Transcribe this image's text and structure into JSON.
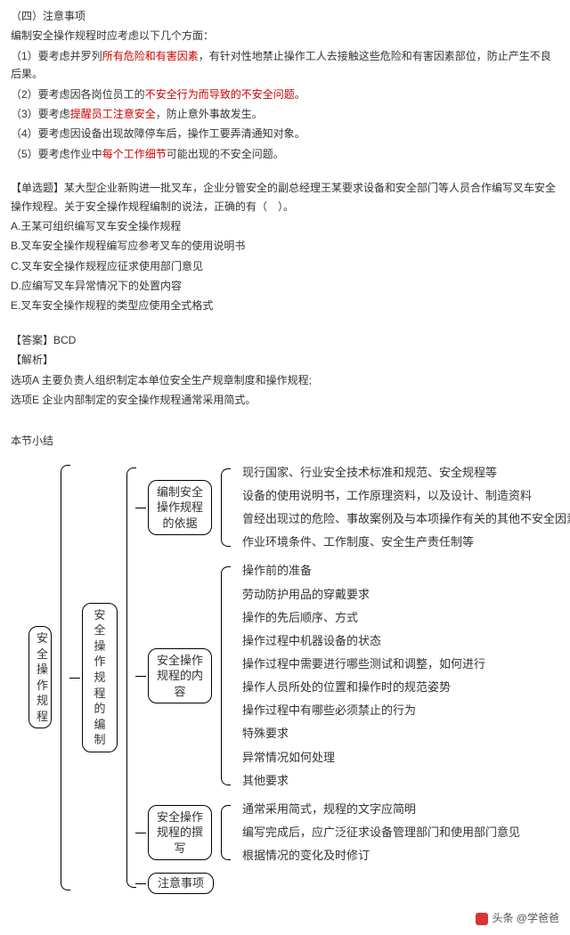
{
  "header": {
    "title": "（四）注意事项",
    "intro": "编制安全操作规程时应考虑以下几个方面：",
    "items": [
      {
        "pre": "（1）要考虑并罗列",
        "red": "所有危险和有害因素",
        "post": "，有针对性地禁止操作工人去接触这些危险和有害因素部位，防止产生不良后果。"
      },
      {
        "pre": "（2）要考虑因各岗位员工的",
        "red": "不安全行为而导致的不安全问题",
        "post": "。"
      },
      {
        "pre": "（3）要考虑",
        "red": "提醒员工注意安全",
        "post": "，防止意外事故发生。"
      },
      {
        "pre": "（4）要考虑因设备出现故障停车后，操作工要弄清通知对象。",
        "red": "",
        "post": ""
      },
      {
        "pre": "（5）要考虑作业中",
        "red": "每个工作细节",
        "post": "可能出现的不安全问题。"
      }
    ]
  },
  "question": {
    "stem": "【单选题】某大型企业新购进一批叉车，企业分管安全的副总经理王某要求设备和安全部门等人员合作编写叉车安全操作规程。关于安全操作规程编制的说法，正确的有（　）。",
    "options": {
      "A": "A.王某可组织编写叉车安全操作规程",
      "B": "B.叉车安全操作规程编写应参考叉车的使用说明书",
      "C": "C.叉车安全操作规程应征求使用部门意见",
      "D": "D.应编写叉车异常情况下的处置内容",
      "E": "E.叉车安全操作规程的类型应使用全式格式"
    },
    "answer_label": "【答案】BCD",
    "analysis_label": "【解析】",
    "analysis": [
      "选项A 主要负责人组织制定本单位安全生产规章制度和操作规程;",
      "选项E 企业内部制定的安全操作规程通常采用简式。"
    ]
  },
  "summary": {
    "title": "本节小结",
    "root": "安全操作规程",
    "level2": "安全操作规程的编制",
    "branches": {
      "b1": {
        "label": "编制安全操作规程的依据",
        "leaves": [
          "现行国家、行业安全技术标准和规范、安全规程等",
          "设备的使用说明书，工作原理资料，以及设计、制造资料",
          "曾经出现过的危险、事故案例及与本项操作有关的其他不安全因素",
          "作业环境条件、工作制度、安全生产责任制等"
        ]
      },
      "b2": {
        "label": "安全操作规程的内容",
        "leaves": [
          "操作前的准备",
          "劳动防护用品的穿戴要求",
          "操作的先后顺序、方式",
          "操作过程中机器设备的状态",
          "操作过程中需要进行哪些测试和调整，如何进行",
          "操作人员所处的位置和操作时的规范姿势",
          "操作过程中有哪些必须禁止的行为",
          "特殊要求",
          "异常情况如何处理",
          "其他要求"
        ]
      },
      "b3": {
        "label": "安全操作规程的撰写",
        "leaves": [
          "通常采用简式，规程的文字应简明",
          "编写完成后，应广泛征求设备管理部门和使用部门意见",
          "根据情况的变化及时修订"
        ]
      },
      "b4": {
        "label": "注意事项"
      }
    }
  },
  "footer": {
    "text": "头条 @学爸爸"
  }
}
